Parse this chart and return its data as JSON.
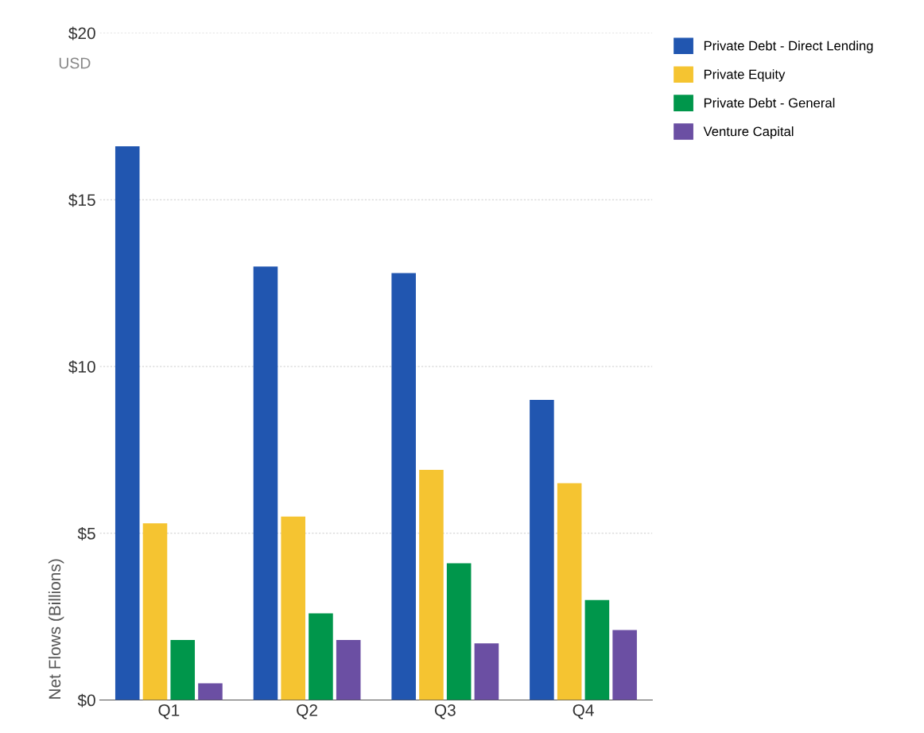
{
  "chart_data": {
    "type": "bar",
    "ylabel": "Net Flows (Billions)",
    "categories": [
      "Q1",
      "Q2",
      "Q3",
      "Q4"
    ],
    "series": [
      {
        "name": "Private Debt - Direct Lending",
        "color": "#2156b0",
        "values": [
          16.6,
          13.0,
          12.8,
          9.0
        ]
      },
      {
        "name": "Private Equity",
        "color": "#f5c431",
        "values": [
          5.3,
          5.5,
          6.9,
          6.5
        ]
      },
      {
        "name": "Private Debt - General",
        "color": "#00964b",
        "values": [
          1.8,
          2.6,
          4.1,
          3.0
        ]
      },
      {
        "name": "Venture Capital",
        "color": "#6b4fa3",
        "values": [
          0.5,
          1.8,
          1.7,
          2.1
        ]
      }
    ],
    "ylim": [
      0,
      20
    ],
    "yticks": [
      {
        "value": 0,
        "label": "$0"
      },
      {
        "value": 5,
        "label": "$5"
      },
      {
        "value": 10,
        "label": "$10"
      },
      {
        "value": 15,
        "label": "$15"
      },
      {
        "value": 20,
        "label": "$20"
      }
    ],
    "annotations": [
      "USD"
    ],
    "grid": "y",
    "legend": "top right"
  }
}
